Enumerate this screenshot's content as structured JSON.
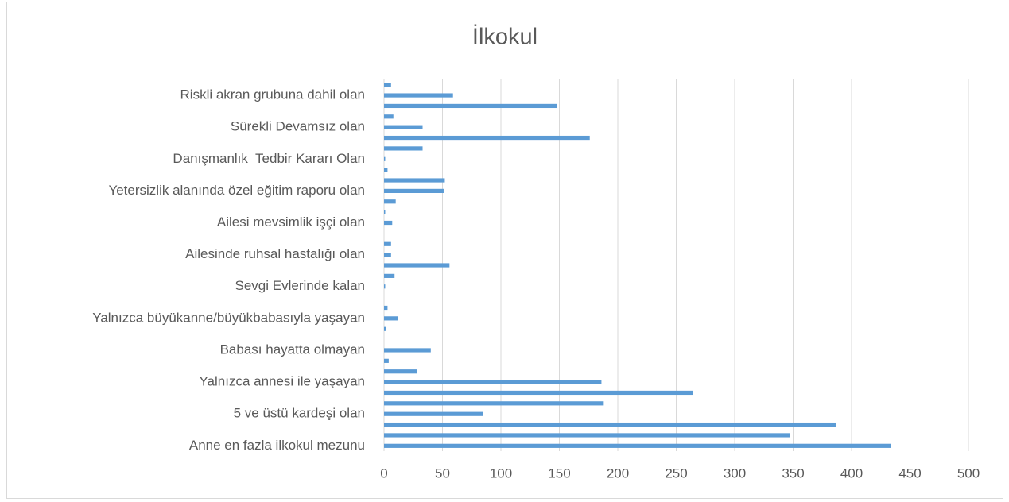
{
  "chart_data": {
    "type": "bar",
    "orientation": "horizontal",
    "title": "İlkokul",
    "categories": [
      "Anne en fazla ilkokul mezunu",
      null,
      null,
      "5 ve üstü kardeşi olan",
      null,
      null,
      "Yalnızca annesi ile yaşayan",
      null,
      null,
      "Babası hayatta olmayan",
      null,
      null,
      "Yalnızca büyükanne/büyükbabasıyla yaşayan",
      null,
      null,
      "Sevgi Evlerinde kalan",
      null,
      null,
      "Ailesinde ruhsal hastalığı olan",
      null,
      null,
      "Ailesi mevsimlik işçi olan",
      null,
      null,
      "Yetersizlik alanında özel eğitim raporu olan",
      null,
      null,
      "Danışmanlık  Tedbir Kararı Olan",
      null,
      null,
      "Sürekli Devamsız olan",
      null,
      null,
      "Riskli akran grubuna dahil olan",
      null
    ],
    "values": [
      434,
      347,
      387,
      85,
      188,
      264,
      186,
      28,
      4,
      40,
      0,
      2,
      12,
      3,
      0,
      1,
      9,
      56,
      6,
      6,
      0,
      7,
      1,
      10,
      51,
      52,
      3,
      1,
      33,
      176,
      33,
      8,
      148,
      59,
      6
    ],
    "color": "#5b9bd5",
    "xlim": [
      0,
      500
    ],
    "xticks": [
      0,
      50,
      100,
      150,
      200,
      250,
      300,
      350,
      400,
      450,
      500
    ],
    "grid": true
  }
}
